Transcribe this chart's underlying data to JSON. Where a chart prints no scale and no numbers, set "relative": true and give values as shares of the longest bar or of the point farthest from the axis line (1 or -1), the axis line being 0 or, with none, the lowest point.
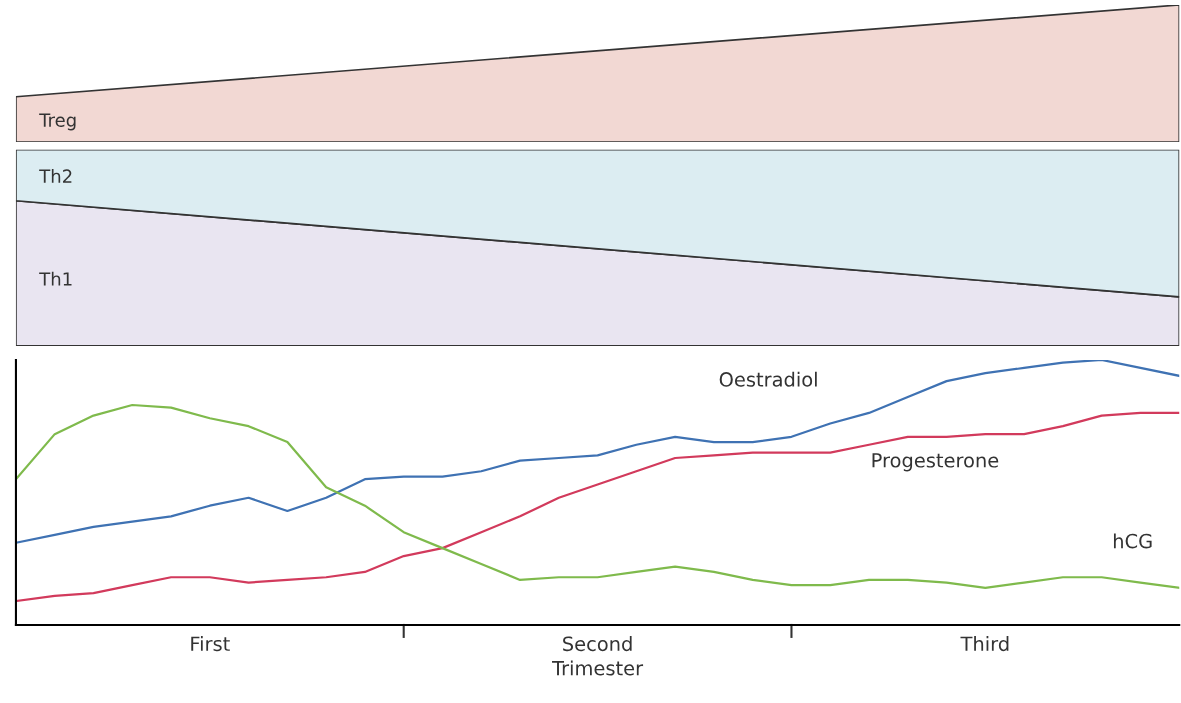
{
  "chart_data": [
    {
      "type": "area",
      "relative": true,
      "tick_labels": false,
      "categories": [
        null,
        null
      ],
      "series": [
        {
          "name": "Treg",
          "color": "#f2d8d3",
          "values": [
            0.33,
            1
          ]
        }
      ]
    },
    {
      "type": "area",
      "relative": true,
      "stacked": true,
      "tick_labels": false,
      "categories": [
        null,
        null
      ],
      "series": [
        {
          "name": "Th1",
          "color": "#e9e5f1",
          "values": [
            0.74,
            0.25
          ]
        },
        {
          "name": "Th2",
          "color": "#dcedf2",
          "values": [
            0.26,
            0.75
          ]
        }
      ]
    },
    {
      "type": "line",
      "relative": true,
      "tick_labels": "x",
      "xlabel": "Trimester",
      "categories": [
        null,
        null,
        null,
        null,
        null,
        "First",
        null,
        null,
        null,
        null,
        null,
        null,
        null,
        null,
        null,
        "Second",
        null,
        null,
        null,
        null,
        null,
        null,
        null,
        null,
        null,
        "Third",
        null,
        null,
        null,
        null,
        null
      ],
      "series": [
        {
          "color": "#3f72b3",
          "values": [
            0.31,
            0.34,
            0.37,
            0.39,
            0.41,
            0.45,
            0.48,
            0.43,
            0.48,
            0.55,
            0.56,
            0.56,
            0.58,
            0.62,
            0.63,
            0.64,
            0.68,
            0.71,
            0.69,
            0.69,
            0.71,
            0.76,
            0.8,
            0.86,
            0.92,
            0.95,
            0.97,
            0.99,
            1,
            0.97,
            0.94
          ]
        },
        {
          "color": "#d23a5c",
          "values": [
            0.09,
            0.11,
            0.12,
            0.15,
            0.18,
            0.18,
            0.16,
            0.17,
            0.18,
            0.2,
            0.26,
            0.29,
            0.35,
            0.41,
            0.48,
            0.53,
            0.58,
            0.63,
            0.64,
            0.65,
            0.65,
            0.65,
            0.68,
            0.71,
            0.71,
            0.72,
            0.72,
            0.75,
            0.79,
            0.8,
            0.8
          ]
        },
        {
          "color": "#7fba4c",
          "values": [
            0.55,
            0.72,
            0.79,
            0.83,
            0.82,
            0.78,
            0.75,
            0.69,
            0.52,
            0.45,
            0.35,
            0.29,
            0.23,
            0.17,
            0.18,
            0.18,
            0.2,
            0.22,
            0.2,
            0.17,
            0.15,
            0.15,
            0.17,
            0.17,
            0.16,
            0.14,
            0.16,
            0.18,
            0.18,
            0.16,
            0.14
          ]
        }
      ],
      "annotations": [
        "Oestradiol",
        "Progesterone",
        "hCG"
      ]
    }
  ]
}
